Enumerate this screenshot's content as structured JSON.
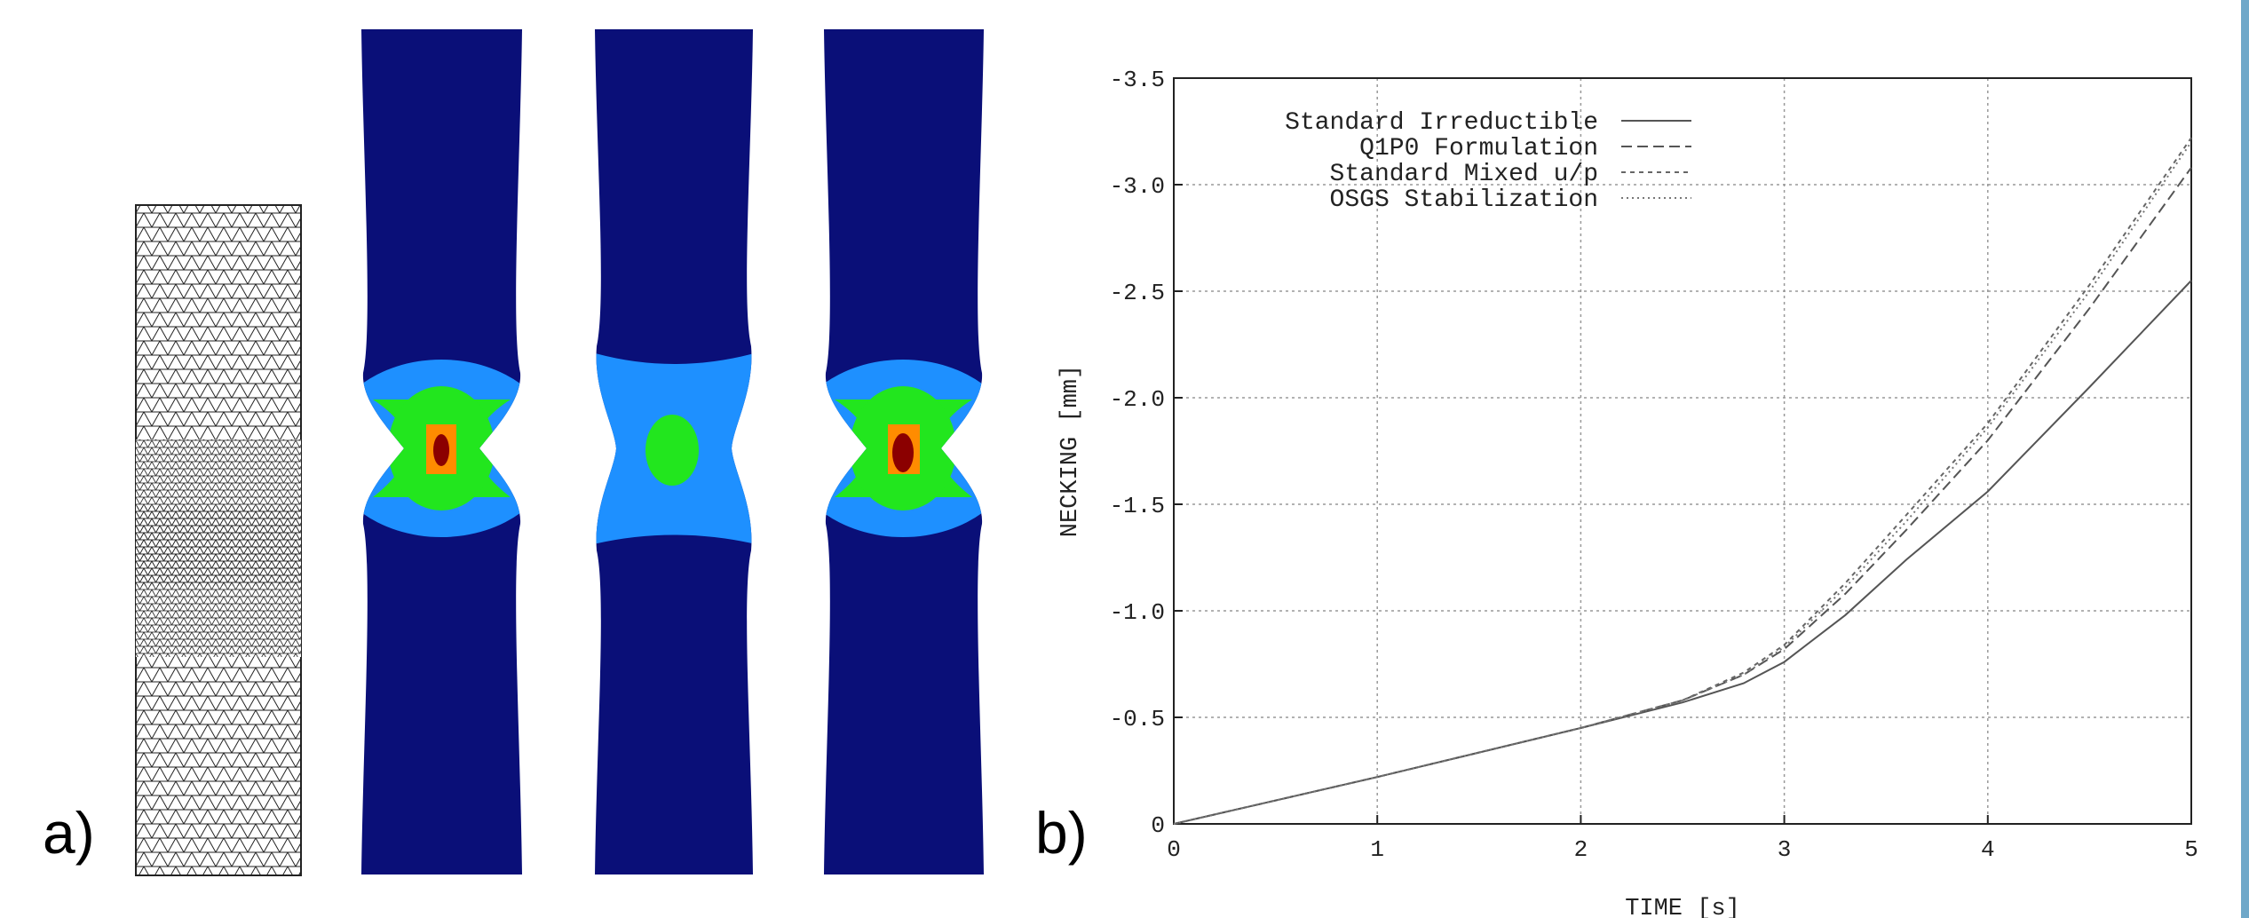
{
  "panel_labels": {
    "a": "a)",
    "b": "b)"
  },
  "colors": {
    "dark_blue": "#0a0f78",
    "light_blue": "#1e90ff",
    "green": "#22e61e",
    "orange": "#ff8c00",
    "dark_red": "#8b0000",
    "mesh_line": "#222222"
  },
  "chart_data": {
    "type": "line",
    "xlabel": "TIME [s]",
    "ylabel": "NECKING [mm]",
    "xlim": [
      0,
      5
    ],
    "ylim": [
      0,
      -3.5
    ],
    "x_ticks": [
      "0",
      "1",
      "2",
      "3",
      "4",
      "5"
    ],
    "y_ticks": [
      "0",
      "-0.5",
      "-1.0",
      "-1.5",
      "-2.0",
      "-2.5",
      "-3.0",
      "-3.5"
    ],
    "grid": true,
    "legend_position": "top-left",
    "series": [
      {
        "name": "Standard Irreductible",
        "style": "solid",
        "x": [
          0,
          1,
          2,
          2.5,
          2.8,
          3.0,
          3.3,
          3.6,
          4.0,
          4.5,
          5.0
        ],
        "y": [
          0,
          -0.22,
          -0.45,
          -0.57,
          -0.66,
          -0.76,
          -0.98,
          -1.24,
          -1.56,
          -2.05,
          -2.55
        ]
      },
      {
        "name": "Q1P0 Formulation",
        "style": "dashed",
        "x": [
          0,
          1,
          2,
          2.5,
          2.8,
          3.0,
          3.3,
          3.6,
          4.0,
          4.5,
          5.0
        ],
        "y": [
          0,
          -0.22,
          -0.45,
          -0.58,
          -0.7,
          -0.82,
          -1.08,
          -1.38,
          -1.8,
          -2.42,
          -3.08
        ]
      },
      {
        "name": "Standard Mixed u/p",
        "style": "dotted",
        "x": [
          0,
          1,
          2,
          2.5,
          2.8,
          3.0,
          3.3,
          3.6,
          4.0,
          4.5,
          5.0
        ],
        "y": [
          0,
          -0.22,
          -0.45,
          -0.58,
          -0.71,
          -0.84,
          -1.13,
          -1.45,
          -1.88,
          -2.53,
          -3.22
        ]
      },
      {
        "name": "OSGS Stabilization",
        "style": "finedot",
        "x": [
          0,
          1,
          2,
          2.5,
          2.8,
          3.0,
          3.3,
          3.6,
          4.0,
          4.5,
          5.0
        ],
        "y": [
          0,
          -0.22,
          -0.45,
          -0.58,
          -0.7,
          -0.83,
          -1.11,
          -1.42,
          -1.86,
          -2.5,
          -3.2
        ]
      }
    ]
  }
}
